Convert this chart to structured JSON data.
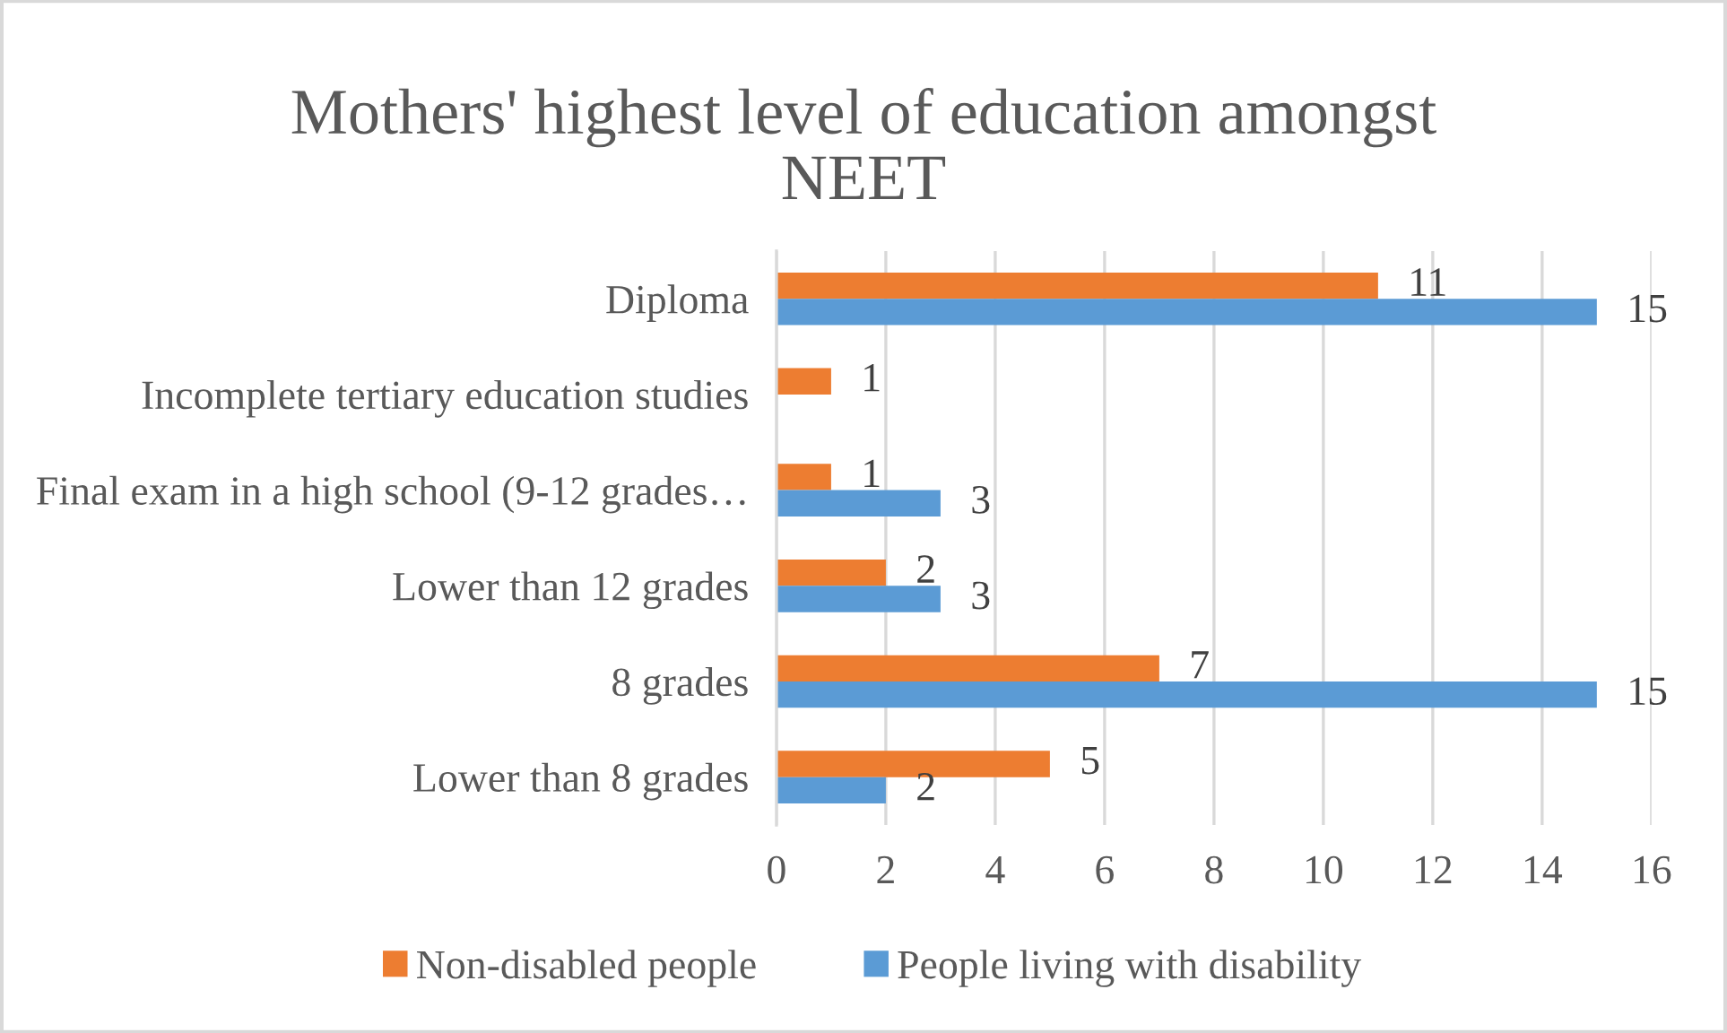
{
  "chart_data": {
    "type": "bar",
    "orientation": "horizontal",
    "title": "Mothers' highest level of education amongst NEET",
    "categories": [
      "Diploma",
      "Incomplete tertiary education studies",
      "Final exam in a high school (9-12 grades…",
      "Lower than 12 grades",
      "8 grades",
      "Lower than 8 grades"
    ],
    "series": [
      {
        "name": "Non-disabled people",
        "color": "#ed7d31",
        "values": [
          11,
          1,
          1,
          2,
          7,
          5
        ]
      },
      {
        "name": "People living with disability",
        "color": "#5b9bd5",
        "values": [
          15,
          null,
          3,
          3,
          15,
          2
        ]
      }
    ],
    "xlim": [
      0,
      16
    ],
    "xticks": [
      0,
      2,
      4,
      6,
      8,
      10,
      12,
      14,
      16
    ],
    "grid": "x",
    "legend": "bottom",
    "data_labels": true
  }
}
